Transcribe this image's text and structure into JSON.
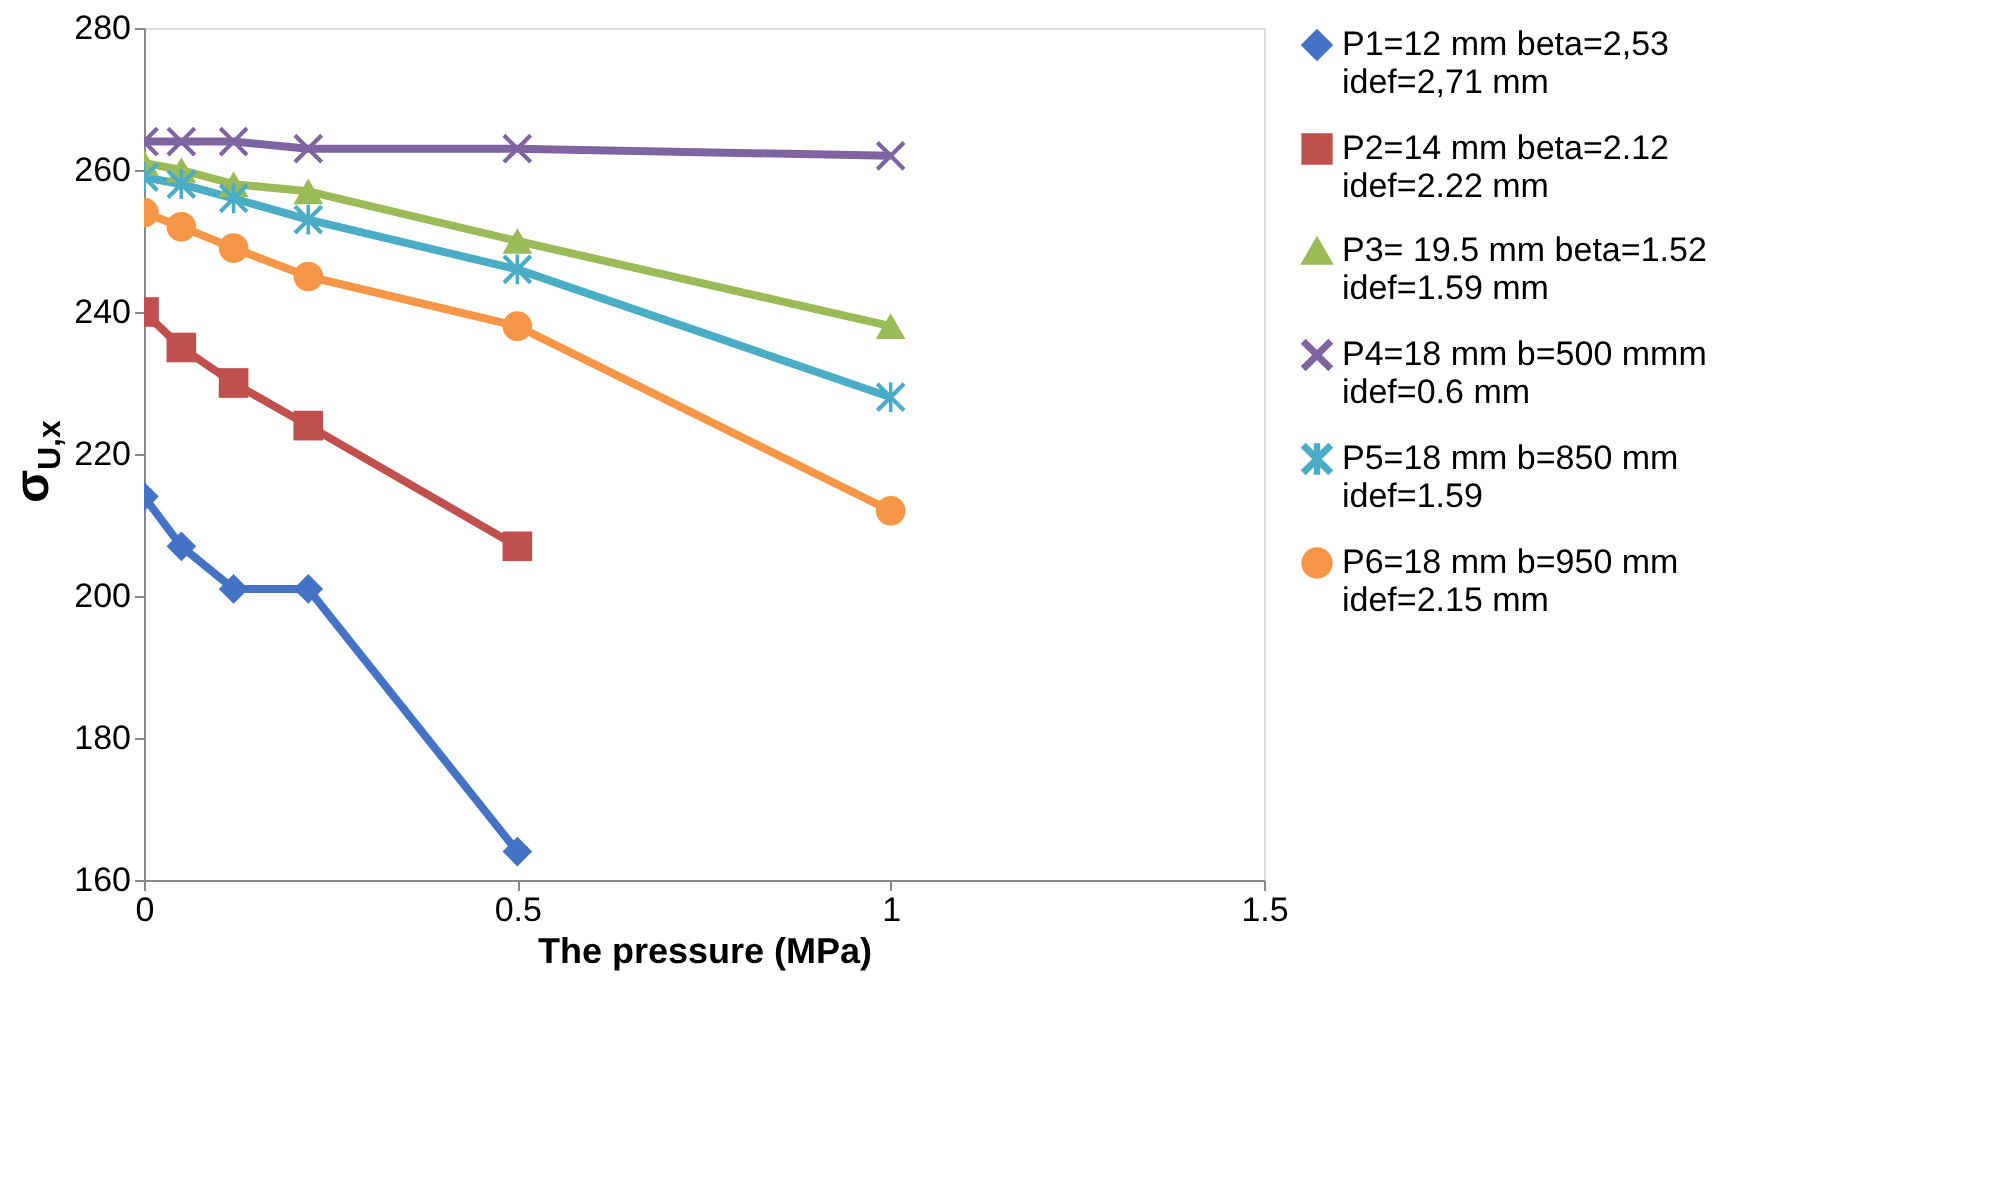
{
  "chart_data": {
    "type": "line",
    "xlabel": "The pressure (MPa)",
    "ylabel": "σ$_{U,x}$",
    "x": [
      0,
      0.05,
      0.12,
      0.22,
      0.5,
      1
    ],
    "xlim": [
      0,
      1.5
    ],
    "xticks": [
      0,
      0.5,
      1,
      1.5
    ],
    "ylim": [
      160,
      280
    ],
    "yticks": [
      160,
      180,
      200,
      220,
      240,
      260,
      280
    ],
    "grid": false,
    "legend": "right",
    "series": [
      {
        "name": "P1=12 mm beta=2,53 idef=2,71 mm",
        "color": "#4472c4",
        "marker": "diamond",
        "x": [
          0,
          0.05,
          0.12,
          0.22,
          0.5
        ],
        "values": [
          214,
          207,
          201,
          201,
          164
        ]
      },
      {
        "name": "P2=14 mm beta=2.12 idef=2.22 mm",
        "color": "#c0504d",
        "marker": "square",
        "values": [
          240,
          235,
          230,
          224,
          207,
          null
        ]
      },
      {
        "name": "P3= 19.5 mm beta=1.52 idef=1.59 mm",
        "color": "#9bbb59",
        "marker": "triangle",
        "values": [
          261,
          260,
          258,
          257,
          250,
          238
        ]
      },
      {
        "name": "P4=18 mm b=500 mmm idef=0.6 mm",
        "color": "#8064a2",
        "marker": "cross",
        "values": [
          264,
          264,
          264,
          263,
          263,
          262
        ]
      },
      {
        "name": "P5=18 mm b=850 mm idef=1.59",
        "color": "#4bacc6",
        "marker": "star",
        "values": [
          259,
          258,
          256,
          253,
          246,
          228
        ]
      },
      {
        "name": "P6=18 mm b=950 mm idef=2.15 mm",
        "color": "#f79646",
        "marker": "circle",
        "values": [
          254,
          252,
          249,
          245,
          238,
          212
        ]
      }
    ]
  }
}
